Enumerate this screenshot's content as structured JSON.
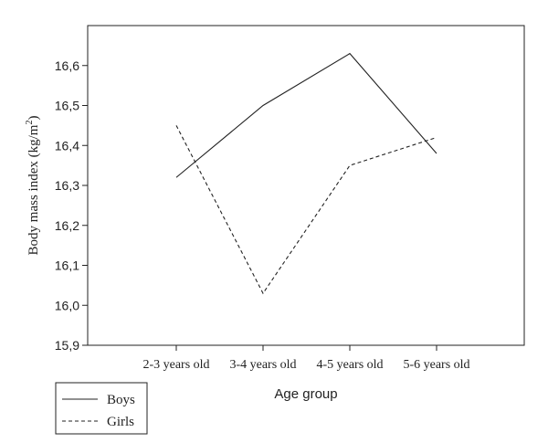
{
  "chart_data": {
    "type": "line",
    "categories": [
      "2-3 years old",
      "3-4 years old",
      "4-5 years old",
      "5-6 years old"
    ],
    "series": [
      {
        "name": "Boys",
        "values": [
          16.32,
          16.5,
          16.63,
          16.38
        ],
        "dash": "solid",
        "color": "#222222"
      },
      {
        "name": "Girls",
        "values": [
          16.45,
          16.03,
          16.35,
          16.42
        ],
        "dash": "dashed",
        "color": "#222222"
      }
    ],
    "xlabel": "Age group",
    "ylabel_main": "Body mass index (kg/m",
    "ylabel_sup": "2",
    "ylabel_end": ")",
    "ylim": [
      15.9,
      16.7
    ],
    "yticks": [
      "15,9",
      "16,0",
      "16,1",
      "16,2",
      "16,3",
      "16,4",
      "16,5",
      "16,6"
    ],
    "grid": false,
    "legend_position": "bottom-left"
  }
}
